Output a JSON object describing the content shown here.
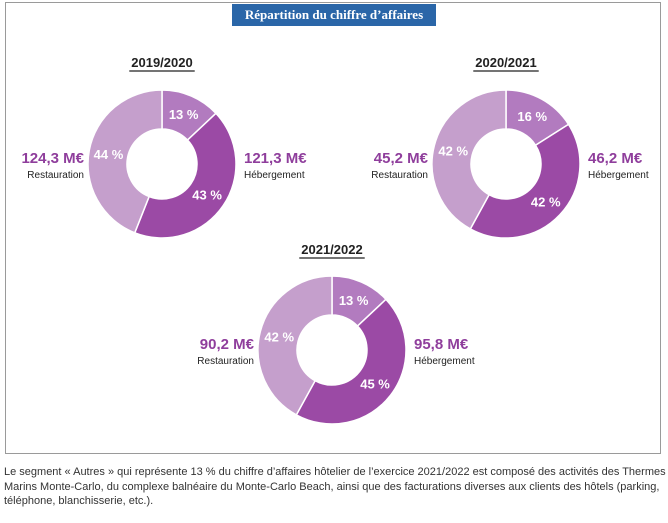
{
  "title": "Répartition du chiffre d’affaires",
  "colors": {
    "banner": "#2a66a8",
    "autres": "#b27bbf",
    "hebergement": "#9b4aa5",
    "restauration": "#c59fcc",
    "value_text": "#8f3e9c"
  },
  "chart_data": [
    {
      "type": "pie",
      "title": "2019/2020",
      "slices": [
        {
          "label": "13 %",
          "value": 13,
          "color": "#b27bbf"
        },
        {
          "label": "43 %",
          "value": 43,
          "color": "#9b4aa5"
        },
        {
          "label": "44 %",
          "value": 44,
          "color": "#c59fcc"
        }
      ],
      "left_value": "124,3 M€",
      "left_label": "Restauration",
      "right_value": "121,3 M€",
      "right_label": "Hébergement"
    },
    {
      "type": "pie",
      "title": "2020/2021",
      "slices": [
        {
          "label": "16 %",
          "value": 16,
          "color": "#b27bbf"
        },
        {
          "label": "42 %",
          "value": 42,
          "color": "#9b4aa5"
        },
        {
          "label": "42 %",
          "value": 42,
          "color": "#c59fcc"
        }
      ],
      "left_value": "45,2 M€",
      "left_label": "Restauration",
      "right_value": "46,2 M€",
      "right_label": "Hébergement"
    },
    {
      "type": "pie",
      "title": "2021/2022",
      "slices": [
        {
          "label": "13 %",
          "value": 13,
          "color": "#b27bbf"
        },
        {
          "label": "45 %",
          "value": 45,
          "color": "#9b4aa5"
        },
        {
          "label": "42 %",
          "value": 42,
          "color": "#c59fcc"
        }
      ],
      "left_value": "90,2 M€",
      "left_label": "Restauration",
      "right_value": "95,8 M€",
      "right_label": "Hébergement"
    }
  ],
  "footnote": "Le segment « Autres » qui représente 13 % du chiffre d’affaires hôtelier de l’exercice 2021/2022 est composé des activités des Thermes Marins Monte-Carlo, du complexe balnéaire du Monte-Carlo Beach, ainsi que des facturations diverses aux clients des hôtels (parking, téléphone, blanchisserie, etc.)."
}
